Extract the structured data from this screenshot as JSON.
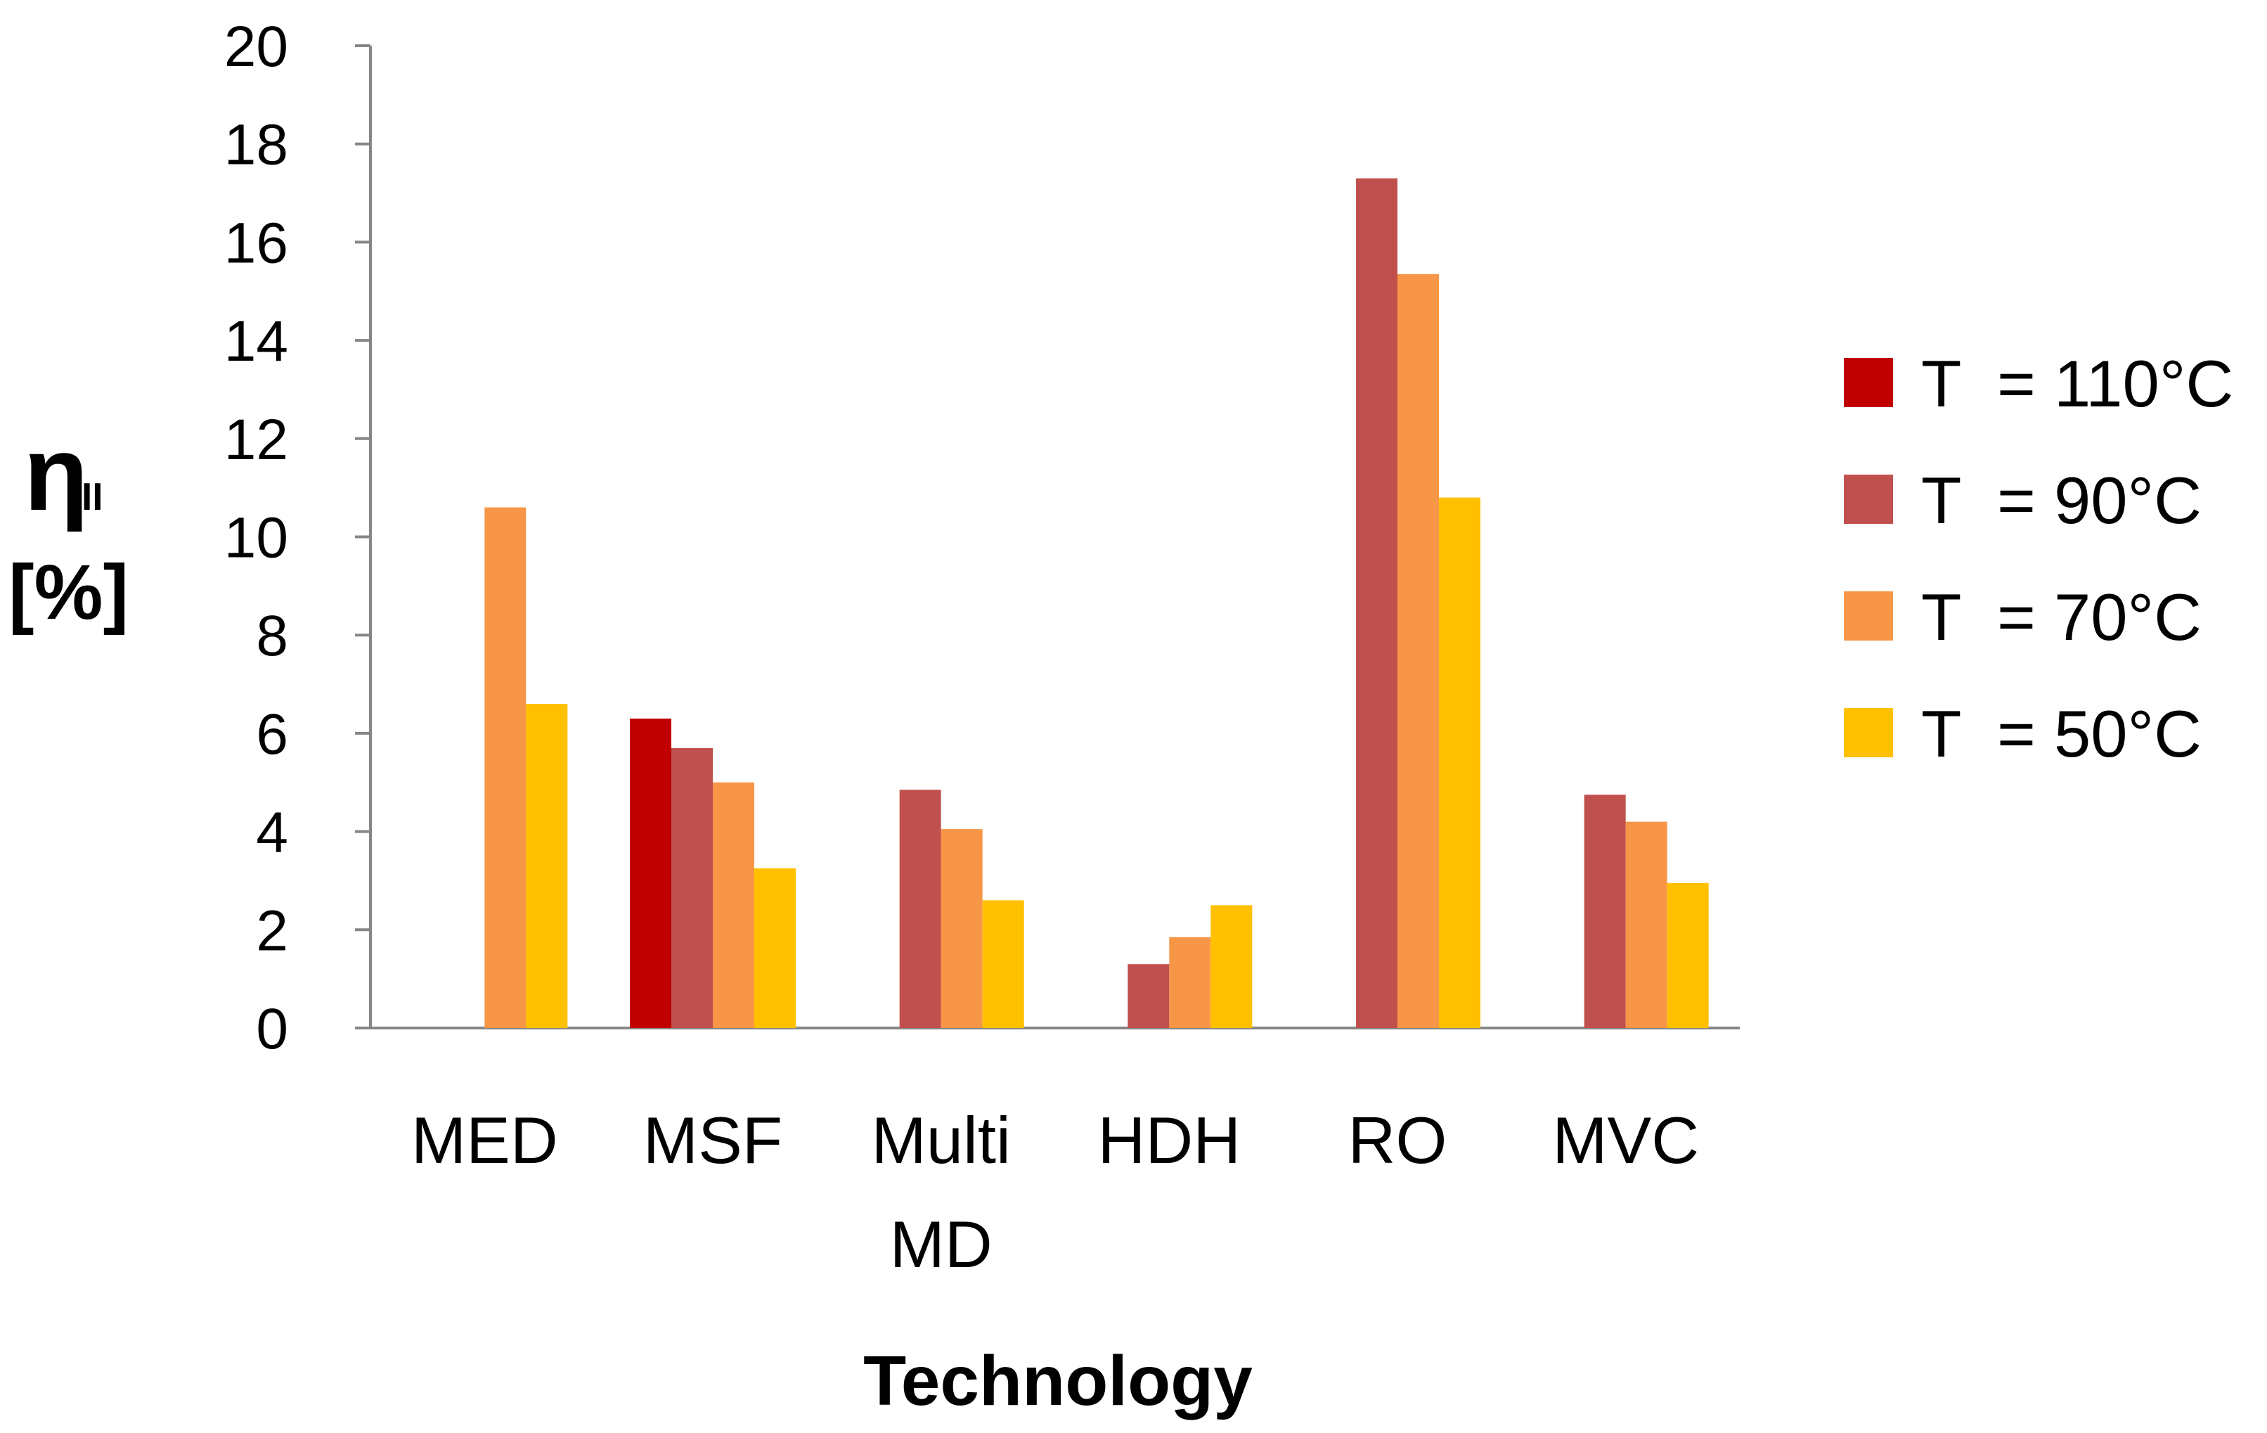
{
  "chart_data": {
    "type": "bar",
    "categories": [
      [
        "MED"
      ],
      [
        "MSF"
      ],
      [
        "Multi",
        "MD"
      ],
      [
        "HDH"
      ],
      [
        "RO"
      ],
      [
        "MVC"
      ]
    ],
    "series": [
      {
        "name": "T  = 110°C",
        "color": "#c00000",
        "values": [
          null,
          6.3,
          null,
          null,
          null,
          null
        ]
      },
      {
        "name": "T  = 90°C",
        "color": "#c0504d",
        "values": [
          null,
          5.7,
          4.85,
          1.3,
          17.3,
          4.75
        ]
      },
      {
        "name": "T  = 70°C",
        "color": "#f79646",
        "values": [
          10.6,
          5.0,
          4.05,
          1.85,
          15.35,
          4.2
        ]
      },
      {
        "name": "T  = 50°C",
        "color": "#ffc000",
        "values": [
          6.6,
          3.25,
          2.6,
          2.5,
          10.8,
          2.95
        ]
      }
    ],
    "ylim": [
      0,
      20
    ],
    "yticks": [
      0,
      2,
      4,
      6,
      8,
      10,
      12,
      14,
      16,
      18,
      20
    ],
    "xlabel": "Technology",
    "ylabel": {
      "symbol": "η",
      "subscript": "II",
      "unit": "[%]"
    },
    "legend_position": "right",
    "grid": false
  }
}
